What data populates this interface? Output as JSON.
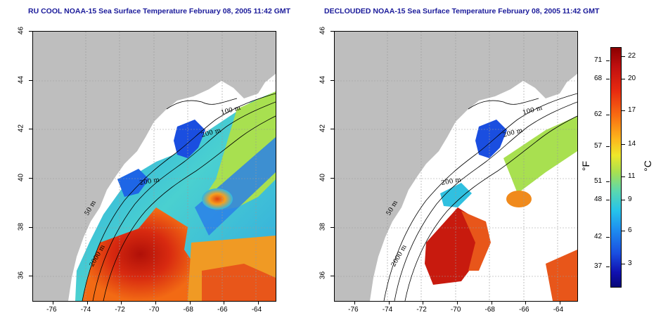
{
  "titles": {
    "left": "RU COOL NOAA-15 Sea Surface Temperature February 08, 2005 11:42 GMT",
    "right": "DECLOUDED NOAA-15 Sea Surface Temperature February 08, 2005 11:42 GMT"
  },
  "axes": {
    "x_ticks": [
      "-76",
      "-74",
      "-72",
      "-70",
      "-68",
      "-66",
      "-64"
    ],
    "y_ticks": [
      "46",
      "44",
      "42",
      "40",
      "38",
      "36"
    ],
    "x_range": [
      -77.2,
      -63.0
    ],
    "y_range": [
      35.0,
      46.0
    ]
  },
  "contour_labels": [
    "100 m",
    "200 m",
    "200 m",
    "50 m",
    "2000 m"
  ],
  "colorbar": {
    "fahrenheit_ticks": [
      "71",
      "68",
      "62",
      "57",
      "51",
      "48",
      "42",
      "37"
    ],
    "celsius_ticks": [
      "22",
      "20",
      "17",
      "14",
      "11",
      "9",
      "6",
      "3"
    ],
    "fahrenheit_unit": "°F",
    "celsius_unit": "°C",
    "colors": [
      "#8b0000",
      "#e82a10",
      "#fdb51c",
      "#a8e050",
      "#26c4ea",
      "#1a4ee0",
      "#080878"
    ]
  },
  "colors": {
    "land": "#bebebe",
    "title": "#1a1a9a",
    "warm": "#d42810",
    "cool": "#1e4ee0"
  }
}
